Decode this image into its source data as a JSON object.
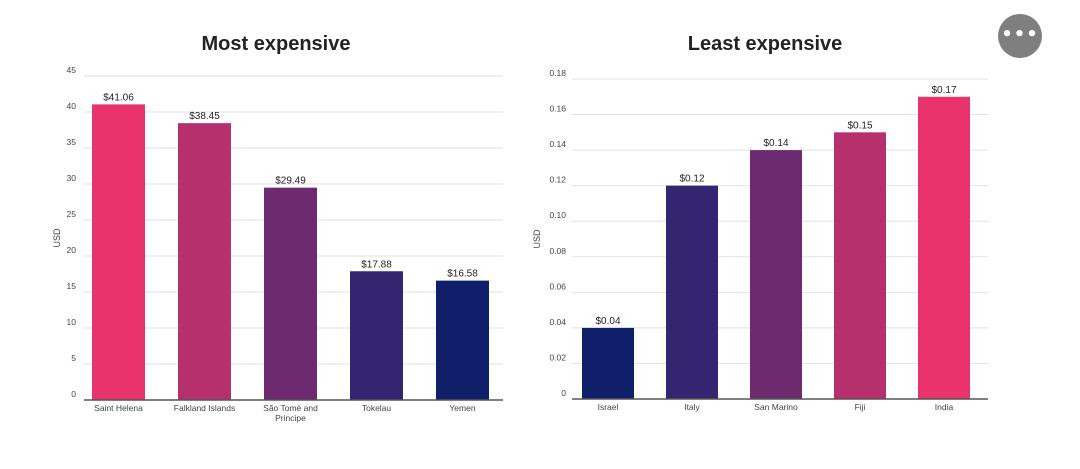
{
  "more_button": {
    "icon": "ellipsis-icon",
    "glyph": "•••"
  },
  "chart_data": [
    {
      "type": "bar",
      "title": "Most expensive",
      "ylabel": "USD",
      "xlabel": "",
      "ylim": [
        0,
        45
      ],
      "yticks": [
        0,
        5,
        10,
        15,
        20,
        25,
        30,
        35,
        40,
        45
      ],
      "ytick_labels": [
        "0",
        "5",
        "10",
        "15",
        "20",
        "25",
        "30",
        "35",
        "40",
        "45"
      ],
      "grid": true,
      "categories": [
        [
          "Saint Helena"
        ],
        [
          "Falkland Islands"
        ],
        [
          "São Tomé and",
          "Principe"
        ],
        [
          "Tokelau"
        ],
        [
          "Yemen"
        ]
      ],
      "values": [
        41.06,
        38.45,
        29.49,
        17.88,
        16.58
      ],
      "data_labels": [
        "$41.06",
        "$38.45",
        "$29.49",
        "$17.88",
        "$16.58"
      ],
      "colors": [
        "#e8336d",
        "#b6306e",
        "#6e2a6e",
        "#332570",
        "#0f1f6a"
      ]
    },
    {
      "type": "bar",
      "title": "Least expensive",
      "ylabel": "USD",
      "xlabel": "",
      "ylim": [
        0,
        0.18
      ],
      "yticks": [
        0,
        0.02,
        0.04,
        0.06,
        0.08,
        0.1,
        0.12,
        0.14,
        0.16,
        0.18
      ],
      "ytick_labels": [
        "0",
        "0.02",
        "0.04",
        "0.06",
        "0.08",
        "0.10",
        "0.12",
        "0.14",
        "0.16",
        "0.18"
      ],
      "grid": true,
      "categories": [
        [
          "Israel"
        ],
        [
          "Italy"
        ],
        [
          "San Marino"
        ],
        [
          "Fiji"
        ],
        [
          "India"
        ]
      ],
      "values": [
        0.04,
        0.12,
        0.14,
        0.15,
        0.17
      ],
      "data_labels": [
        "$0.04",
        "$0.12",
        "$0.14",
        "$0.15",
        "$0.17"
      ],
      "colors": [
        "#0f1f6a",
        "#332570",
        "#6e2a6e",
        "#b6306e",
        "#e8336d"
      ]
    }
  ]
}
